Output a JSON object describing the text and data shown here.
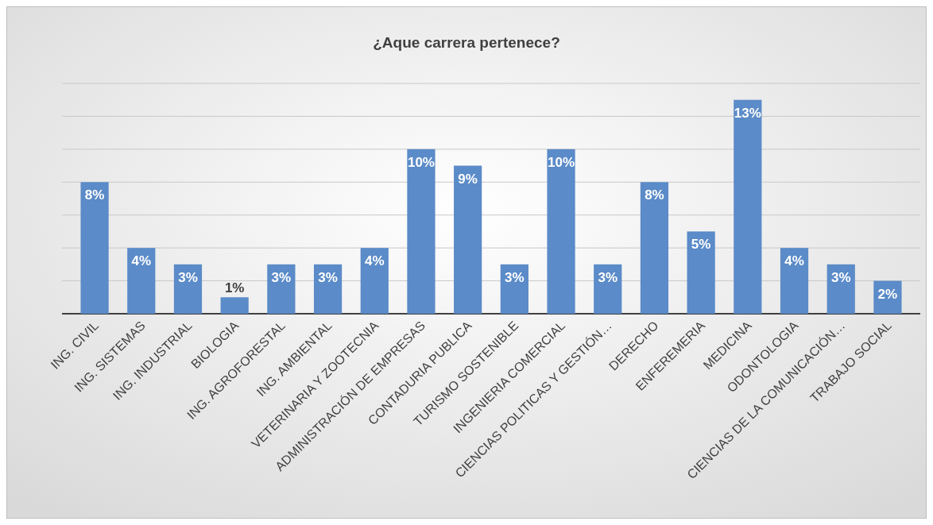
{
  "chart_data": {
    "type": "bar",
    "title": "¿Aque carrera pertenece?",
    "categories": [
      "ING. CIVIL",
      "ING. SISTEMAS",
      "ING. INDUSTRIAL",
      "BIOLOGIA",
      "ING. AGROFORESTAL",
      "ING. AMBIENTAL",
      "VETERINARIA Y ZOOTECNIA",
      "ADMINISTRACIÓN DE EMPRESAS",
      "CONTADURIA PUBLICA",
      "TURISMO SOSTENIBLE",
      "INGENIERIA COMERCIAL",
      "CIENCIAS POLITICAS Y GESTIÓN…",
      "DERECHO",
      "ENFEREMERIA",
      "MEDICINA",
      "ODONTOLOGIA",
      "CIENCIAS DE LA COMUNICACIÓN…",
      "TRABAJO SOCIAL"
    ],
    "values": [
      8,
      4,
      3,
      1,
      3,
      3,
      4,
      10,
      9,
      3,
      10,
      3,
      8,
      5,
      13,
      4,
      3,
      2
    ],
    "value_labels": [
      "8%",
      "4%",
      "3%",
      "1%",
      "3%",
      "3%",
      "4%",
      "10%",
      "9%",
      "3%",
      "10%",
      "3%",
      "8%",
      "5%",
      "13%",
      "4%",
      "3%",
      "2%"
    ],
    "color": "#5b8bc8",
    "ylim": [
      0,
      14
    ],
    "yticks": [
      {
        "value": 0,
        "label": null
      },
      {
        "value": 2,
        "label": null
      },
      {
        "value": 4,
        "label": null
      },
      {
        "value": 6,
        "label": null
      },
      {
        "value": 8,
        "label": null
      },
      {
        "value": 10,
        "label": null
      },
      {
        "value": 12,
        "label": null
      },
      {
        "value": 14,
        "label": null
      }
    ],
    "tick_labels": "x",
    "grid": "y"
  }
}
